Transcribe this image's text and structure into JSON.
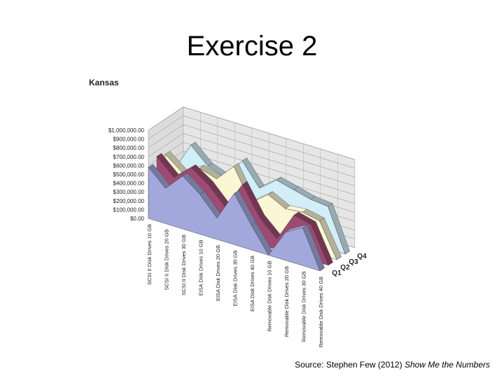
{
  "slide": {
    "title": "Exercise 2",
    "source_prefix": "Source: Stephen Few (2012) ",
    "source_title": "Show Me the Numbers"
  },
  "colors": {
    "Q1": "#a3a8dc",
    "Q2": "#9e4a72",
    "Q3": "#fbf6d4",
    "Q4": "#d2eef8",
    "wall": "#e6e6e6",
    "grid": "#8a8a8a"
  },
  "chart_data": {
    "type": "area",
    "title": "Kansas",
    "ylim": [
      0,
      1000000
    ],
    "yticks": [
      "$0.00",
      "$100,000.00",
      "$200,000.00",
      "$300,000.00",
      "$400,000.00",
      "$500,000.00",
      "$600,000.00",
      "$700,000.00",
      "$800,000.00",
      "$900,000.00",
      "$1,000,000.00"
    ],
    "categories": [
      "SCSI II Disk Drives 10 GB",
      "SCSI II Disk Drives 20 GB",
      "SCSI II Disk Drives 30 GB",
      "EISA Disk Drives 10 GB",
      "EISA Disk Drives 20 GB",
      "EISA Disk Drives 30 GB",
      "EISA Disk Drives 40 GB",
      "Removable Disk Drives 10 GB",
      "Removable Disk Drives 20 GB",
      "Removable Disk Drives 30 GB",
      "Removable Disk Drives 40 GB"
    ],
    "series": [
      {
        "name": "Q1",
        "values": [
          580000,
          400000,
          600000,
          450000,
          240000,
          580000,
          280000,
          0,
          320000,
          430000,
          0
        ]
      },
      {
        "name": "Q2",
        "values": [
          640000,
          460000,
          630000,
          500000,
          300000,
          620000,
          300000,
          120000,
          450000,
          400000,
          0
        ]
      },
      {
        "name": "Q3",
        "values": [
          600000,
          450000,
          560000,
          500000,
          700000,
          350000,
          500000,
          400000,
          420000,
          380000,
          0
        ]
      },
      {
        "name": "Q4",
        "values": [
          350000,
          700000,
          520000,
          450000,
          700000,
          450000,
          600000,
          550000,
          500000,
          480000,
          0
        ]
      }
    ],
    "legend_position": "depth-axis",
    "grid": true
  }
}
